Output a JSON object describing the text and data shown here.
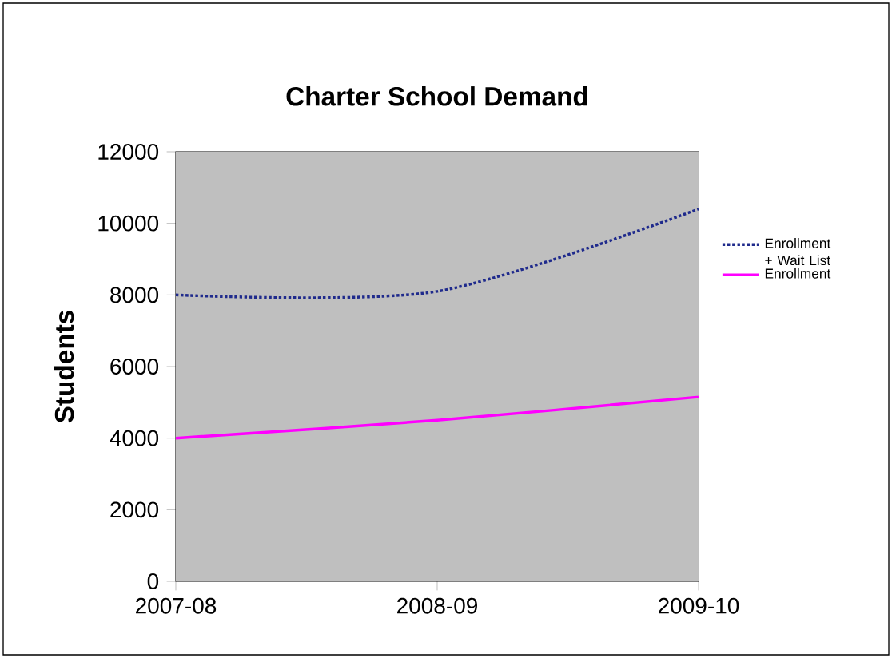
{
  "chart_data": {
    "type": "line",
    "title": "Charter School Demand",
    "ylabel": "Students",
    "categories": [
      "2007-08",
      "2008-09",
      "2009-10"
    ],
    "series": [
      {
        "name": "Enrollment + Wait List",
        "color": "#1f2a8c",
        "line_style": "dotted",
        "values": [
          8000,
          8100,
          10400
        ]
      },
      {
        "name": "Enrollment",
        "color": "#ff00ff",
        "line_style": "solid",
        "values": [
          4000,
          4500,
          5150
        ]
      }
    ],
    "ylim": [
      0,
      12000
    ],
    "yticks": [
      0,
      2000,
      4000,
      6000,
      8000,
      10000,
      12000
    ],
    "grid": false,
    "legend": "right",
    "marker": "none"
  }
}
